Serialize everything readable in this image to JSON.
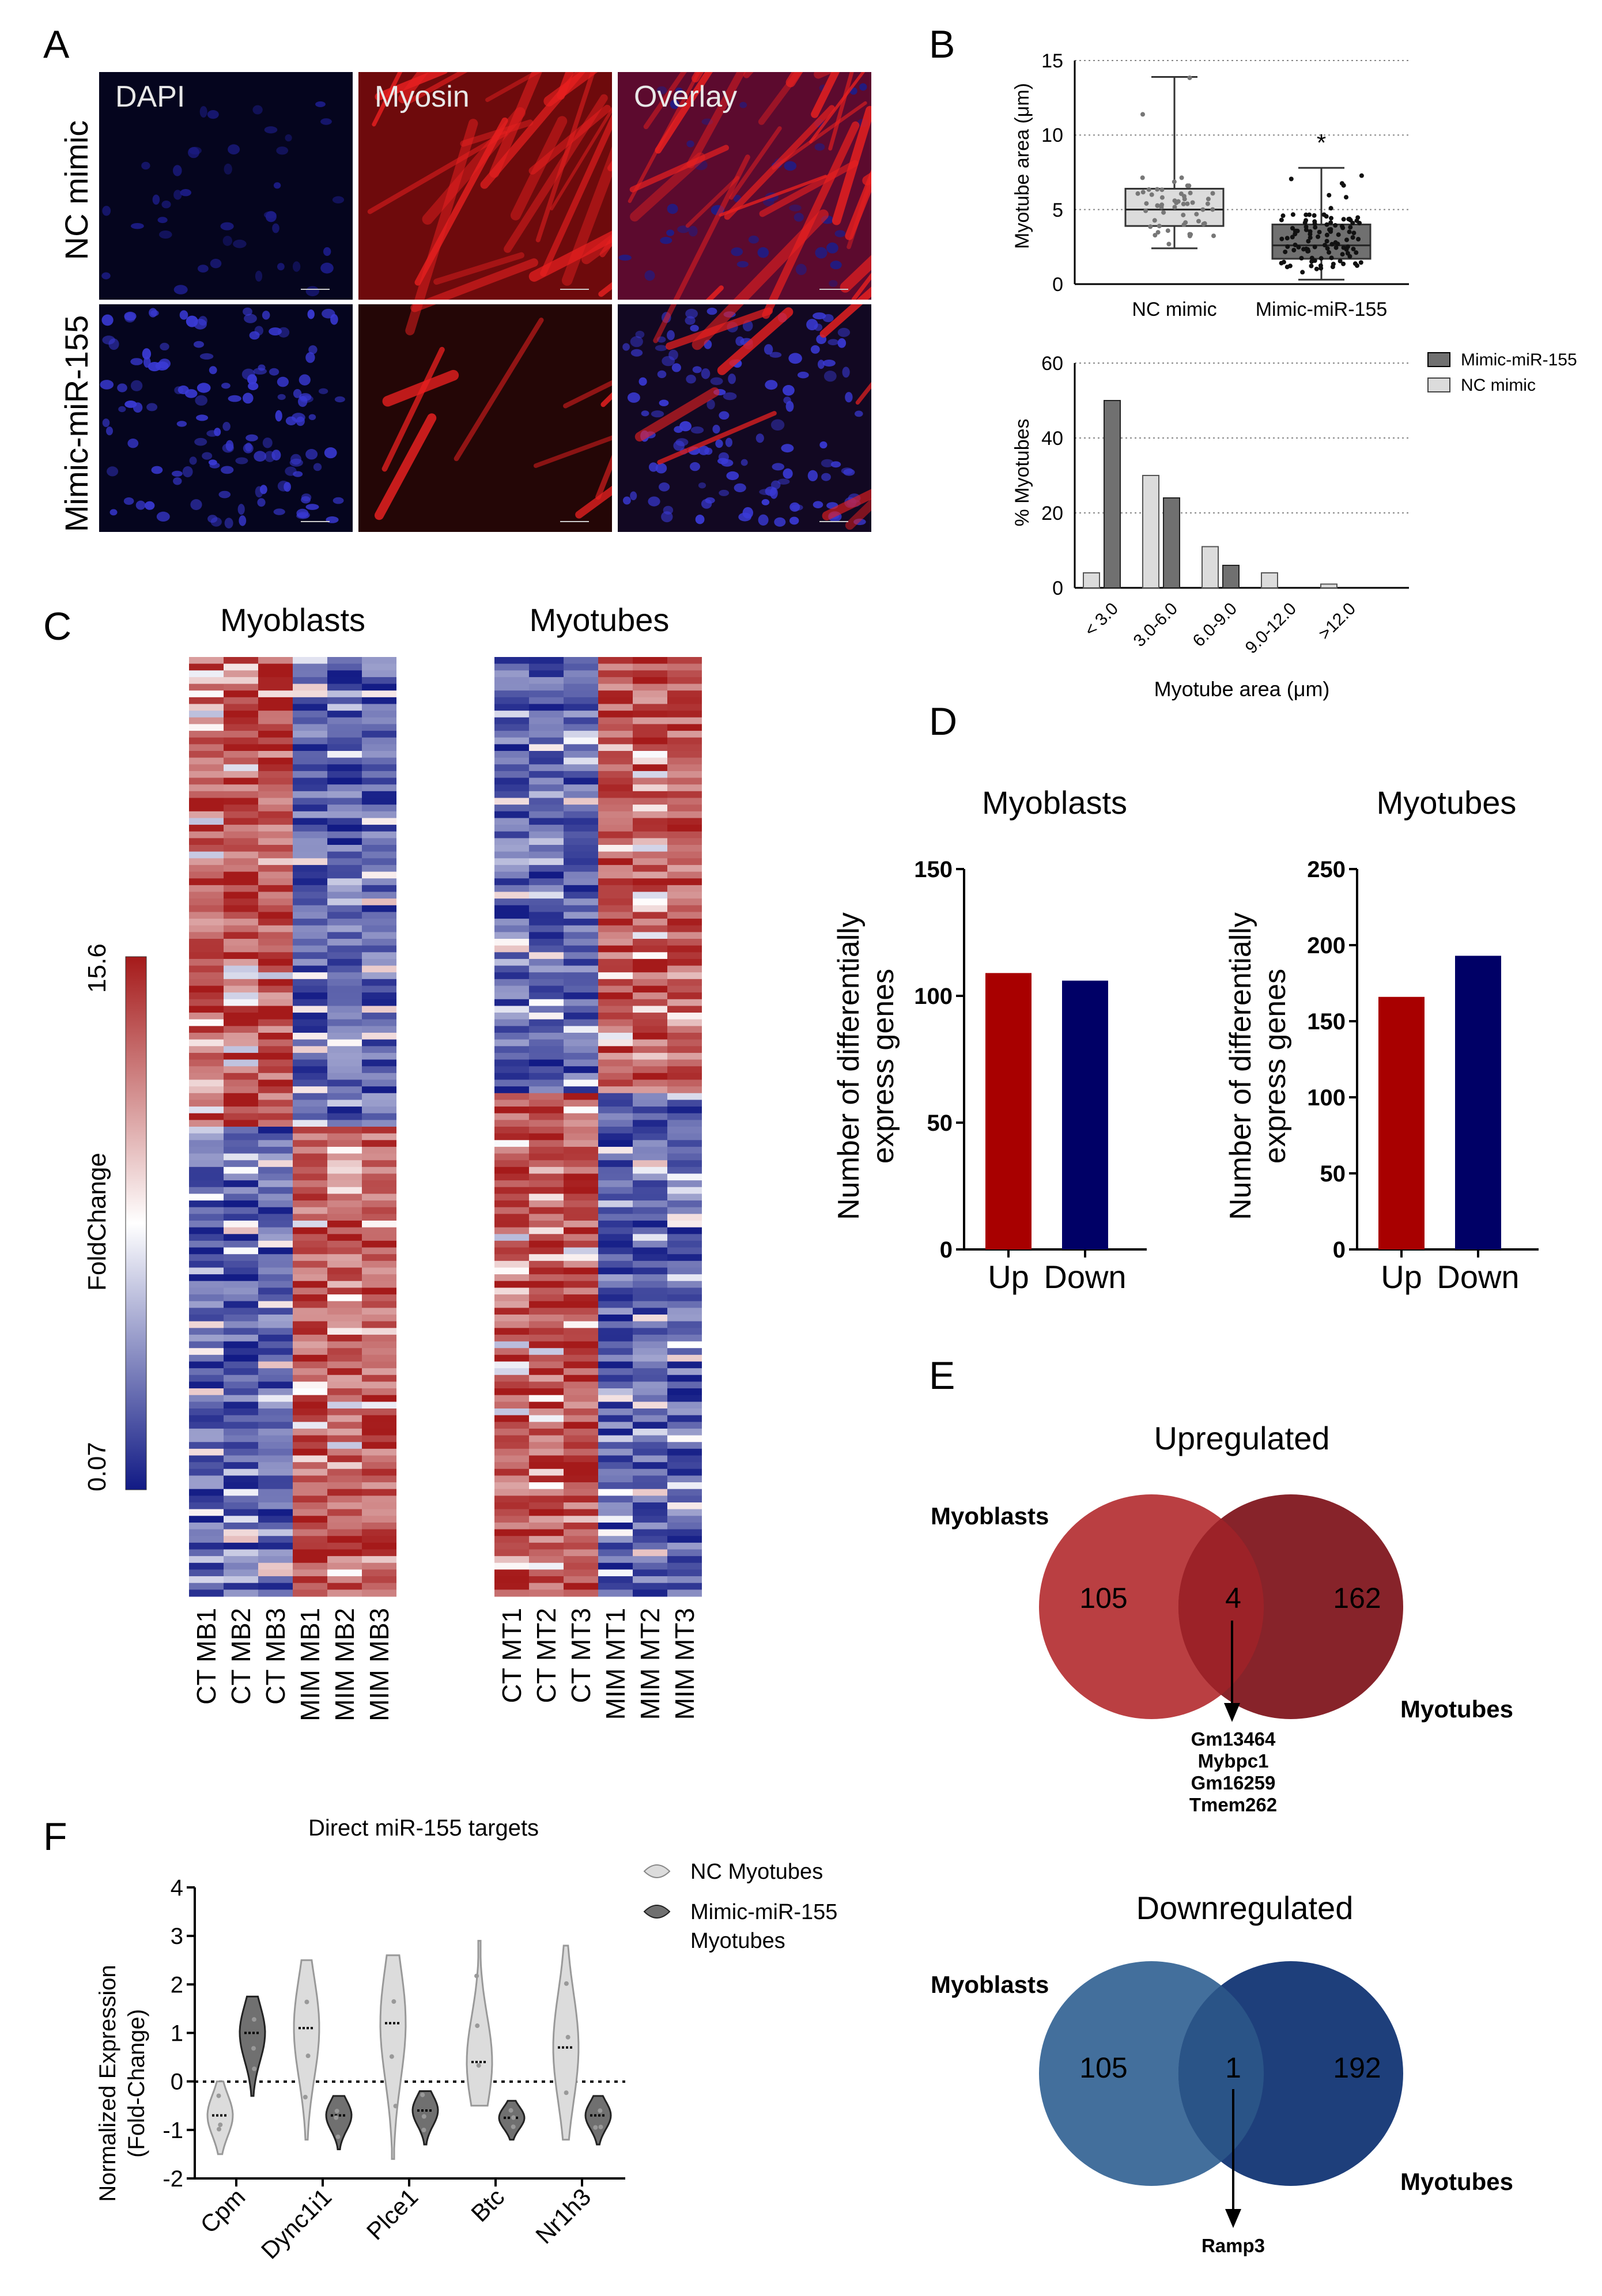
{
  "panels": {
    "A": "A",
    "B": "B",
    "C": "C",
    "D": "D",
    "E": "E",
    "F": "F"
  },
  "panelA": {
    "rows": [
      "NC mimic",
      "Mimic-miR-155"
    ],
    "cols": [
      "DAPI",
      "Myosin",
      "Overlay"
    ]
  },
  "panelB": {
    "box": {
      "ylabel": "Myotube area (μm)",
      "yticks": [
        "0",
        "5",
        "10",
        "15"
      ],
      "groups": [
        "NC mimic",
        "Mimic-miR-155"
      ],
      "star": "*",
      "stats": [
        {
          "min": 2.4,
          "q1": 3.9,
          "median": 5.0,
          "q3": 6.4,
          "max": 13.9
        },
        {
          "min": 0.3,
          "q1": 1.7,
          "median": 2.6,
          "q3": 4.0,
          "max": 7.8
        }
      ],
      "ylim": [
        0,
        15
      ]
    },
    "hist": {
      "ylabel": "% Myotubes",
      "xlabel": "Myotube area (μm)",
      "yticks": [
        "0",
        "20",
        "40",
        "60"
      ],
      "legend": [
        "Mimic-miR-155",
        "NC mimic"
      ],
      "ylim": [
        0,
        60
      ]
    }
  },
  "panelC": {
    "titles": [
      "Myoblasts",
      "Myotubes"
    ],
    "colorbar": {
      "label": "FoldChange",
      "max": "15.6",
      "min": "0.07"
    },
    "mb_labels": [
      "CT MB1",
      "CT MB2",
      "CT MB3",
      "MIM MB1",
      "MIM MB2",
      "MIM MB3"
    ],
    "mt_labels": [
      "CT MT1",
      "CT MT2",
      "CT MT3",
      "MIM MT1",
      "MIM MT2",
      "MIM MT3"
    ]
  },
  "panelD": {
    "ylabel_line1": "Number of differentially",
    "ylabel_line2": "express genes",
    "titles": [
      "Myoblasts",
      "Myotubes"
    ],
    "yticks_mb": [
      "0",
      "50",
      "100",
      "150"
    ],
    "yticks_mt": [
      "0",
      "50",
      "100",
      "150",
      "200",
      "250"
    ]
  },
  "panelE": {
    "up": {
      "title": "Upregulated",
      "left_label": "Myoblasts",
      "right_label": "Myotubes",
      "left": "105",
      "mid": "4",
      "right": "162",
      "genes": [
        "Gm13464",
        "Mybpc1",
        "Gm16259",
        "Tmem262"
      ]
    },
    "down": {
      "title": "Downregulated",
      "left_label": "Myoblasts",
      "right_label": "Myotubes",
      "left": "105",
      "mid": "1",
      "right": "192",
      "genes": [
        "Ramp3"
      ]
    },
    "colors": {
      "up_left": "#b8393c",
      "up_right": "#7d1018",
      "down_left": "#3d6a99",
      "down_right": "#123574"
    }
  },
  "panelF": {
    "title": "Direct miR-155 targets",
    "ylabel_line1": "Normalized Expression",
    "ylabel_line2": "(Fold-Change)",
    "yticks": [
      "-2",
      "-1",
      "0",
      "1",
      "2",
      "3",
      "4"
    ],
    "legend": [
      "NC Myotubes",
      "Mimic-miR-155",
      "Myotubes"
    ]
  },
  "chart_data": [
    {
      "type": "box",
      "title": "",
      "ylabel": "Myotube area (μm)",
      "categories": [
        "NC mimic",
        "Mimic-miR-155"
      ],
      "ylim": [
        0,
        15
      ],
      "box_stats": [
        {
          "name": "NC mimic",
          "min": 2.4,
          "q1": 3.9,
          "median": 5.0,
          "q3": 6.4,
          "max": 13.9
        },
        {
          "name": "Mimic-miR-155",
          "min": 0.3,
          "q1": 1.7,
          "median": 2.6,
          "q3": 4.0,
          "max": 7.8
        }
      ],
      "significance": "*"
    },
    {
      "type": "bar",
      "ylabel": "% Myotubes",
      "xlabel": "Myotube area (μm)",
      "categories": [
        "< 3.0",
        "3.0-6.0",
        "6.0-9.0",
        "9.0-12.0",
        ">12.0"
      ],
      "ylim": [
        0,
        60
      ],
      "series": [
        {
          "name": "NC mimic",
          "color": "#dcdcdc",
          "values": [
            4,
            30,
            11,
            4,
            1
          ]
        },
        {
          "name": "Mimic-miR-155",
          "color": "#707070",
          "values": [
            50,
            24,
            6,
            0,
            0
          ]
        }
      ],
      "legend": "top-right"
    },
    {
      "type": "heatmap",
      "title": "Myoblasts",
      "columns": [
        "CT MB1",
        "CT MB2",
        "CT MB3",
        "MIM MB1",
        "MIM MB2",
        "MIM MB3"
      ],
      "pattern": [
        {
          "rows_fraction": 0.5,
          "values": [
            "high",
            "high",
            "high",
            "low",
            "low",
            "low"
          ]
        },
        {
          "rows_fraction": 0.5,
          "values": [
            "low",
            "low",
            "low",
            "high",
            "high",
            "high"
          ]
        }
      ],
      "color_range": [
        0.07,
        15.6
      ],
      "colorbar_label": "FoldChange"
    },
    {
      "type": "heatmap",
      "title": "Myotubes",
      "columns": [
        "CT MT1",
        "CT MT2",
        "CT MT3",
        "MIM MT1",
        "MIM MT2",
        "MIM MT3"
      ],
      "pattern": [
        {
          "rows_fraction": 0.46,
          "values": [
            "low",
            "low",
            "low",
            "high",
            "high",
            "high"
          ]
        },
        {
          "rows_fraction": 0.54,
          "values": [
            "high",
            "high",
            "high",
            "low",
            "low",
            "low"
          ]
        }
      ],
      "color_range": [
        0.07,
        15.6
      ]
    },
    {
      "type": "bar",
      "title": "Myoblasts",
      "ylabel": "Number of differentially express genes",
      "categories": [
        "Up",
        "Down"
      ],
      "values": [
        109,
        106
      ],
      "colors": [
        "#a80000",
        "#000066"
      ],
      "ylim": [
        0,
        150
      ]
    },
    {
      "type": "bar",
      "title": "Myotubes",
      "ylabel": "Number of differentially express genes",
      "categories": [
        "Up",
        "Down"
      ],
      "values": [
        166,
        193
      ],
      "colors": [
        "#a80000",
        "#000066"
      ],
      "ylim": [
        0,
        250
      ]
    },
    {
      "type": "violin",
      "title": "Direct miR-155 targets",
      "ylabel": "Normalized Expression (Fold-Change)",
      "categories": [
        "Cpm",
        "Dync1i1",
        "Plce1",
        "Btc",
        "Nr1h3"
      ],
      "ylim": [
        -2,
        4
      ],
      "reference_line": 0,
      "series": [
        {
          "name": "NC Myotubes",
          "median": [
            -0.7,
            1.1,
            1.2,
            0.4,
            0.7
          ],
          "min": [
            -1.5,
            -1.2,
            -1.6,
            -0.5,
            -1.2
          ],
          "max": [
            0.0,
            2.5,
            2.6,
            2.9,
            2.8
          ]
        },
        {
          "name": "Mimic-miR-155 Myotubes",
          "median": [
            1.0,
            -0.7,
            -0.6,
            -0.75,
            -0.7
          ],
          "min": [
            -0.3,
            -1.4,
            -1.3,
            -1.2,
            -1.3
          ],
          "max": [
            1.75,
            -0.3,
            -0.2,
            -0.4,
            -0.3
          ]
        }
      ]
    }
  ]
}
